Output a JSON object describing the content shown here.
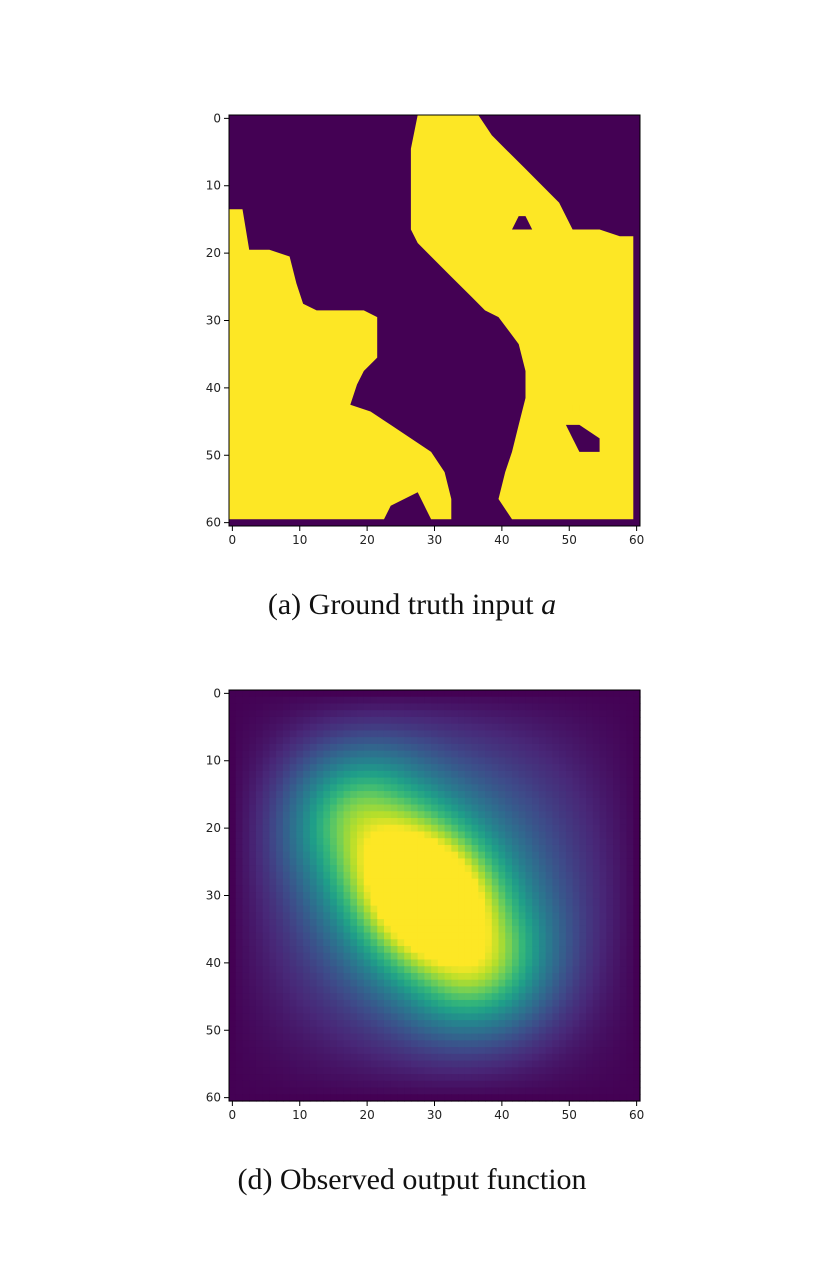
{
  "chart_data": [
    {
      "type": "heatmap",
      "title": "",
      "caption": {
        "prefix": "(a) Ground truth input",
        "symbol": "a"
      },
      "grid_size": 61,
      "xlim": [
        0,
        60
      ],
      "ylim": [
        60,
        0
      ],
      "xticks": [
        0,
        10,
        20,
        30,
        40,
        50,
        60
      ],
      "yticks": [
        0,
        10,
        20,
        30,
        40,
        50,
        60
      ],
      "colormap": "viridis",
      "value_range": [
        0,
        1
      ],
      "colors": {
        "low": "#440154",
        "high": "#fde725"
      },
      "regions": [
        {
          "name": "yellow-left-lower",
          "value": 1,
          "polygon": [
            [
              0,
              14
            ],
            [
              2,
              14
            ],
            [
              3,
              20
            ],
            [
              6,
              20
            ],
            [
              9,
              21
            ],
            [
              10,
              25
            ],
            [
              11,
              28
            ],
            [
              13,
              29
            ],
            [
              20,
              29
            ],
            [
              22,
              30
            ],
            [
              22,
              36
            ],
            [
              20,
              38
            ],
            [
              19,
              40
            ],
            [
              18,
              43
            ],
            [
              21,
              44
            ],
            [
              24,
              46
            ],
            [
              27,
              48
            ],
            [
              30,
              50
            ],
            [
              32,
              53
            ],
            [
              33,
              57
            ],
            [
              33,
              60
            ],
            [
              30,
              60
            ],
            [
              29,
              58
            ],
            [
              28,
              56
            ],
            [
              26,
              57
            ],
            [
              24,
              58
            ],
            [
              23,
              60
            ],
            [
              0,
              60
            ]
          ]
        },
        {
          "name": "yellow-right-upper",
          "value": 1,
          "polygon": [
            [
              28,
              0
            ],
            [
              37,
              0
            ],
            [
              39,
              3
            ],
            [
              41,
              5
            ],
            [
              44,
              8
            ],
            [
              46,
              10
            ],
            [
              49,
              13
            ],
            [
              51,
              17
            ],
            [
              55,
              17
            ],
            [
              58,
              18
            ],
            [
              60,
              18
            ],
            [
              60,
              60
            ],
            [
              42,
              60
            ],
            [
              40,
              57
            ],
            [
              41,
              53
            ],
            [
              42,
              50
            ],
            [
              43,
              46
            ],
            [
              44,
              42
            ],
            [
              44,
              38
            ],
            [
              43,
              34
            ],
            [
              40,
              30
            ],
            [
              38,
              29
            ],
            [
              36,
              27
            ],
            [
              33,
              24
            ],
            [
              30,
              21
            ],
            [
              28,
              19
            ],
            [
              27,
              17
            ],
            [
              27,
              10
            ],
            [
              27,
              5
            ]
          ]
        },
        {
          "name": "purple-hole-right",
          "value": 0,
          "polygon": [
            [
              50,
              46
            ],
            [
              52,
              46
            ],
            [
              55,
              48
            ],
            [
              55,
              50
            ],
            [
              52,
              50
            ],
            [
              51,
              48
            ]
          ]
        },
        {
          "name": "purple-hole-upper",
          "value": 0,
          "polygon": [
            [
              42,
              17
            ],
            [
              43,
              15
            ],
            [
              44,
              15
            ],
            [
              45,
              17
            ]
          ]
        },
        {
          "name": "yellow-dot-right",
          "value": 1,
          "polygon": [
            [
              51,
              43
            ],
            [
              52,
              43
            ],
            [
              52,
              44
            ],
            [
              51,
              44
            ]
          ]
        }
      ]
    },
    {
      "type": "heatmap",
      "title": "",
      "caption": {
        "prefix": "(d) Observed output function",
        "symbol": ""
      },
      "grid_size": 61,
      "xlim": [
        0,
        60
      ],
      "ylim": [
        60,
        0
      ],
      "xticks": [
        0,
        10,
        20,
        30,
        40,
        50,
        60
      ],
      "yticks": [
        0,
        10,
        20,
        30,
        40,
        50,
        60
      ],
      "colormap": "viridis",
      "value_range": [
        0,
        1
      ],
      "peak": {
        "x": 29,
        "y": 30,
        "value": 1.0
      },
      "ridge_from": {
        "x": 18,
        "y": 18
      },
      "ridge_to": {
        "x": 36,
        "y": 40
      }
    }
  ]
}
